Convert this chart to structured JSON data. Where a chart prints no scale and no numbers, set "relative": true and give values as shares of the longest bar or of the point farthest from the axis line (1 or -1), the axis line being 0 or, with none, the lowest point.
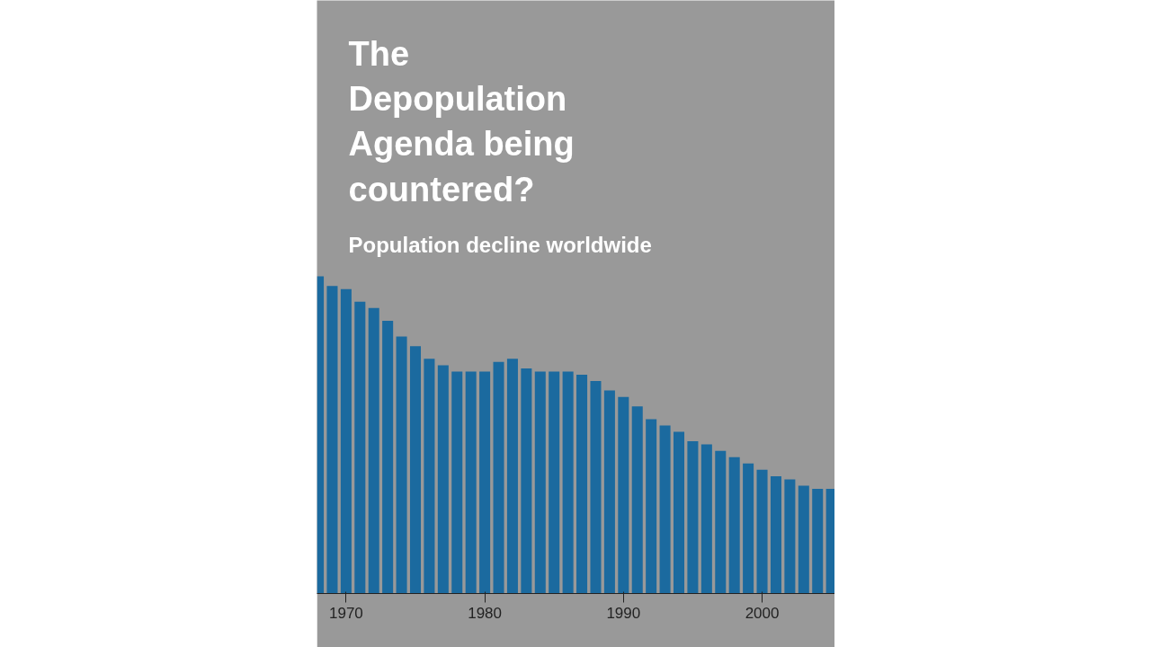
{
  "chart_data": {
    "type": "bar",
    "title": "The Depopulation Agenda being countered?",
    "subtitle": "Population decline worldwide",
    "relative": true,
    "color": "#1b6a9f",
    "x": [
      1968,
      1969,
      1970,
      1971,
      1972,
      1973,
      1974,
      1975,
      1976,
      1977,
      1978,
      1979,
      1980,
      1981,
      1982,
      1983,
      1984,
      1985,
      1986,
      1987,
      1988,
      1989,
      1990,
      1991,
      1992,
      1993,
      1994,
      1995,
      1996,
      1997,
      1998,
      1999,
      2000,
      2001,
      2002,
      2003,
      2004,
      2005
    ],
    "values": [
      1,
      0.97,
      0.96,
      0.92,
      0.9,
      0.86,
      0.81,
      0.78,
      0.74,
      0.72,
      0.7,
      0.7,
      0.7,
      0.73,
      0.74,
      0.71,
      0.7,
      0.7,
      0.7,
      0.69,
      0.67,
      0.64,
      0.62,
      0.59,
      0.55,
      0.53,
      0.51,
      0.48,
      0.47,
      0.45,
      0.43,
      0.41,
      0.39,
      0.37,
      0.36,
      0.34,
      0.33,
      0.33
    ],
    "xlim": [
      1967.9,
      2005.25
    ],
    "xticks": [
      1970,
      1980,
      1990,
      2000
    ]
  }
}
